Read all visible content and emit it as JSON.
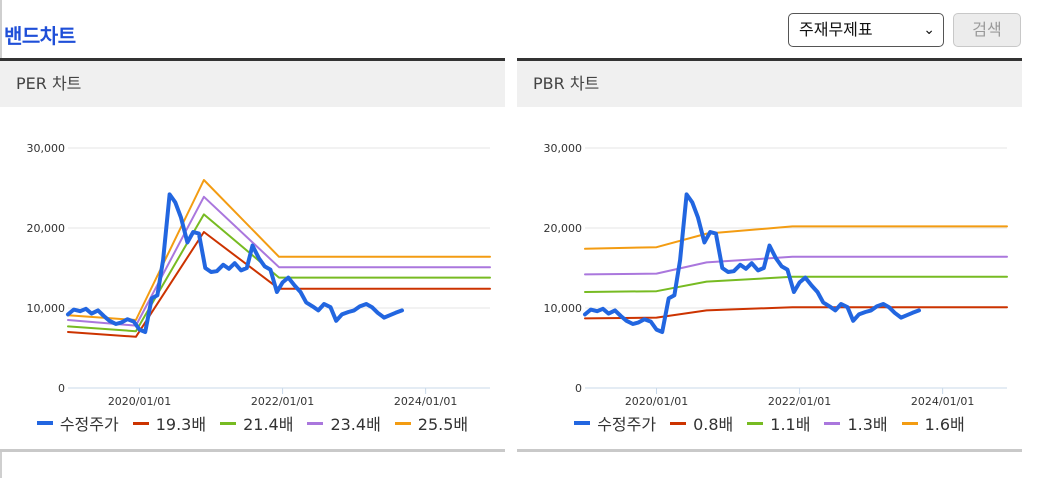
{
  "page": {
    "title": "밴드차트",
    "select_value": "주재무제표",
    "search_label": "검색"
  },
  "chart_data": [
    {
      "type": "line",
      "title": "PER 차트",
      "x_ticks": [
        "2020/01/01",
        "2022/01/01",
        "2024/01/01"
      ],
      "y_ticks": [
        "30,000",
        "20,000",
        "10,000",
        "0"
      ],
      "ylim": [
        0,
        30000
      ],
      "xlim": [
        2019.0,
        2024.9
      ],
      "series": [
        {
          "name": "수정주가",
          "color": "#2266e0",
          "width": 4,
          "x": [
            2019.0,
            2019.08,
            2019.17,
            2019.25,
            2019.33,
            2019.42,
            2019.5,
            2019.58,
            2019.67,
            2019.75,
            2019.83,
            2019.92,
            2020.0,
            2020.08,
            2020.17,
            2020.25,
            2020.33,
            2020.42,
            2020.5,
            2020.58,
            2020.67,
            2020.75,
            2020.83,
            2020.92,
            2021.0,
            2021.08,
            2021.17,
            2021.25,
            2021.33,
            2021.42,
            2021.5,
            2021.58,
            2021.67,
            2021.75,
            2021.83,
            2021.92,
            2022.0,
            2022.08,
            2022.17,
            2022.25,
            2022.33,
            2022.42,
            2022.5,
            2022.58,
            2022.67,
            2022.75,
            2022.83,
            2022.92,
            2023.0,
            2023.08,
            2023.17,
            2023.25,
            2023.33,
            2023.42,
            2023.5,
            2023.58,
            2023.67
          ],
          "values": [
            9200,
            9800,
            9600,
            9900,
            9300,
            9700,
            9000,
            8400,
            8000,
            8200,
            8600,
            8300,
            7300,
            7000,
            11200,
            11600,
            16000,
            24200,
            23200,
            21300,
            18200,
            19500,
            19300,
            15000,
            14500,
            14600,
            15400,
            14900,
            15600,
            14700,
            15000,
            17800,
            16200,
            15200,
            14800,
            12000,
            13200,
            13800,
            12800,
            12000,
            10700,
            10200,
            9700,
            10500,
            10100,
            8400,
            9200,
            9500,
            9700,
            10200,
            10500,
            10100,
            9400,
            8800,
            9100,
            9400,
            9700
          ]
        },
        {
          "name": "19.3배",
          "color": "#cc3300",
          "width": 2,
          "x": [
            2019.0,
            2019.95,
            2020.9,
            2021.95,
            2024.9
          ],
          "values": [
            7000,
            6400,
            19500,
            12400,
            12400
          ]
        },
        {
          "name": "21.4배",
          "color": "#77bb22",
          "width": 2,
          "x": [
            2019.0,
            2019.95,
            2020.9,
            2021.95,
            2024.9
          ],
          "values": [
            7700,
            7100,
            21700,
            13800,
            13800
          ]
        },
        {
          "name": "23.4배",
          "color": "#aa77dd",
          "width": 2,
          "x": [
            2019.0,
            2019.95,
            2020.9,
            2021.95,
            2024.9
          ],
          "values": [
            8500,
            7800,
            23900,
            15100,
            15100
          ]
        },
        {
          "name": "25.5배",
          "color": "#f39c12",
          "width": 2,
          "x": [
            2019.0,
            2019.95,
            2020.9,
            2021.95,
            2024.9
          ],
          "values": [
            9100,
            8500,
            26000,
            16400,
            16400
          ]
        }
      ]
    },
    {
      "type": "line",
      "title": "PBR 차트",
      "x_ticks": [
        "2020/01/01",
        "2022/01/01",
        "2024/01/01"
      ],
      "y_ticks": [
        "30,000",
        "20,000",
        "10,000",
        "0"
      ],
      "ylim": [
        0,
        30000
      ],
      "xlim": [
        2019.0,
        2024.9
      ],
      "series": [
        {
          "name": "수정주가",
          "color": "#2266e0",
          "width": 4,
          "x": [
            2019.0,
            2019.08,
            2019.17,
            2019.25,
            2019.33,
            2019.42,
            2019.5,
            2019.58,
            2019.67,
            2019.75,
            2019.83,
            2019.92,
            2020.0,
            2020.08,
            2020.17,
            2020.25,
            2020.33,
            2020.42,
            2020.5,
            2020.58,
            2020.67,
            2020.75,
            2020.83,
            2020.92,
            2021.0,
            2021.08,
            2021.17,
            2021.25,
            2021.33,
            2021.42,
            2021.5,
            2021.58,
            2021.67,
            2021.75,
            2021.83,
            2021.92,
            2022.0,
            2022.08,
            2022.17,
            2022.25,
            2022.33,
            2022.42,
            2022.5,
            2022.58,
            2022.67,
            2022.75,
            2022.83,
            2022.92,
            2023.0,
            2023.08,
            2023.17,
            2023.25,
            2023.33,
            2023.42,
            2023.5,
            2023.58,
            2023.67
          ],
          "values": [
            9200,
            9800,
            9600,
            9900,
            9300,
            9700,
            9000,
            8400,
            8000,
            8200,
            8600,
            8300,
            7300,
            7000,
            11200,
            11600,
            16000,
            24200,
            23200,
            21300,
            18200,
            19500,
            19300,
            15000,
            14500,
            14600,
            15400,
            14900,
            15600,
            14700,
            15000,
            17800,
            16200,
            15200,
            14800,
            12000,
            13200,
            13800,
            12800,
            12000,
            10700,
            10200,
            9700,
            10500,
            10100,
            8400,
            9200,
            9500,
            9700,
            10200,
            10500,
            10100,
            9400,
            8800,
            9100,
            9400,
            9700
          ]
        },
        {
          "name": "0.8배",
          "color": "#cc3300",
          "width": 2,
          "x": [
            2019.0,
            2020.0,
            2020.7,
            2021.9,
            2024.9
          ],
          "values": [
            8700,
            8800,
            9700,
            10100,
            10100
          ]
        },
        {
          "name": "1.1배",
          "color": "#77bb22",
          "width": 2,
          "x": [
            2019.0,
            2020.0,
            2020.7,
            2021.9,
            2024.9
          ],
          "values": [
            12000,
            12100,
            13300,
            13900,
            13900
          ]
        },
        {
          "name": "1.3배",
          "color": "#aa77dd",
          "width": 2,
          "x": [
            2019.0,
            2020.0,
            2020.7,
            2021.9,
            2024.9
          ],
          "values": [
            14200,
            14300,
            15700,
            16400,
            16400
          ]
        },
        {
          "name": "1.6배",
          "color": "#f39c12",
          "width": 2,
          "x": [
            2019.0,
            2020.0,
            2020.7,
            2021.9,
            2024.9
          ],
          "values": [
            17400,
            17600,
            19300,
            20200,
            20200
          ]
        }
      ]
    }
  ]
}
